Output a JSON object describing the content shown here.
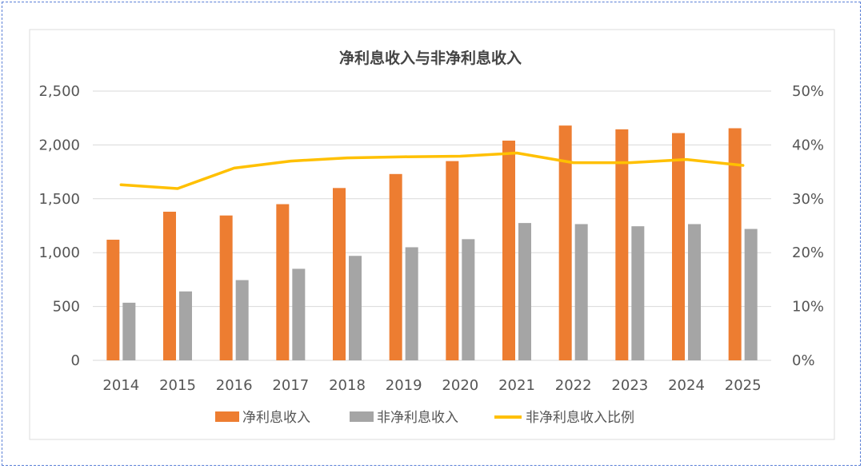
{
  "chart_data": {
    "type": "bar",
    "title": "净利息收入与非净利息收入",
    "categories": [
      "2014",
      "2015",
      "2016",
      "2017",
      "2018",
      "2019",
      "2020",
      "2021",
      "2022",
      "2023",
      "2024",
      "2025"
    ],
    "series": [
      {
        "name": "净利息收入",
        "type": "bar",
        "axis": "left",
        "color": "#ED7D31",
        "values": [
          1120,
          1380,
          1345,
          1450,
          1600,
          1730,
          1850,
          2040,
          2180,
          2145,
          2110,
          2155
        ]
      },
      {
        "name": "非净利息收入",
        "type": "bar",
        "axis": "left",
        "color": "#A5A5A5",
        "values": [
          535,
          640,
          745,
          850,
          970,
          1050,
          1125,
          1275,
          1265,
          1245,
          1265,
          1220
        ]
      },
      {
        "name": "非净利息收入比例",
        "type": "line",
        "axis": "right",
        "color": "#FFC000",
        "values": [
          32.6,
          31.9,
          35.7,
          37.0,
          37.6,
          37.8,
          37.9,
          38.5,
          36.7,
          36.7,
          37.3,
          36.2
        ]
      }
    ],
    "ylim": [
      0,
      2500
    ],
    "y_ticks": [
      "0",
      "500",
      "1,000",
      "1,500",
      "2,000",
      "2,500"
    ],
    "y2lim": [
      0,
      50
    ],
    "y2_ticks": [
      "0%",
      "10%",
      "20%",
      "30%",
      "40%",
      "50%"
    ],
    "grid": true,
    "legend": "bottom"
  }
}
